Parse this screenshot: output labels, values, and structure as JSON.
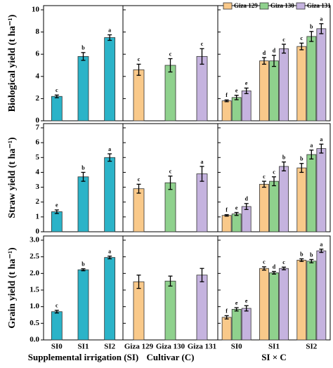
{
  "chart_data": [
    {
      "type": "bar",
      "ylabel": "Biological yield (t ha⁻¹)",
      "ylim": [
        0,
        10
      ],
      "yticks": [
        0,
        2,
        4,
        6,
        8,
        10
      ],
      "values": [
        2.2,
        5.8,
        7.5
      ],
      "errors": [
        0.12,
        0.35,
        0.25
      ],
      "letters": [
        "c",
        "b",
        "a"
      ],
      "color": "#2bb3c8"
    },
    {
      "type": "bar",
      "ylim": [
        0,
        10
      ],
      "values": [
        4.6,
        5.0,
        5.8
      ],
      "errors": [
        0.5,
        0.6,
        0.7
      ],
      "letters": [
        "c",
        "c",
        "c"
      ],
      "colors": [
        "#f9c98a",
        "#8fd18d",
        "#c5b3df"
      ]
    },
    {
      "type": "grouped_bar",
      "ylim": [
        0,
        10
      ],
      "legend": "upper right",
      "series": [
        {
          "name": "Giza 129",
          "color": "#f9c98a",
          "values": [
            1.8,
            5.4,
            6.7
          ],
          "errors": [
            0.08,
            0.3,
            0.3
          ],
          "letters": [
            "f",
            "d",
            "c"
          ]
        },
        {
          "name": "Giza 130",
          "color": "#8fd18d",
          "values": [
            2.1,
            5.4,
            7.6
          ],
          "errors": [
            0.2,
            0.5,
            0.45
          ],
          "letters": [
            "e",
            "d",
            "b"
          ]
        },
        {
          "name": "Giza 131",
          "color": "#c5b3df",
          "values": [
            2.7,
            6.5,
            8.3
          ],
          "errors": [
            0.25,
            0.4,
            0.45
          ],
          "letters": [
            "e",
            "c",
            "a"
          ]
        }
      ]
    },
    {
      "type": "bar",
      "ylabel": "Straw yield (t ha⁻¹)",
      "ylim": [
        0,
        7
      ],
      "yticks": [
        0,
        1,
        2,
        3,
        4,
        5,
        6,
        7
      ],
      "values": [
        1.35,
        3.7,
        5.0
      ],
      "errors": [
        0.12,
        0.3,
        0.25
      ],
      "letters": [
        "e",
        "b",
        "a"
      ],
      "color": "#2bb3c8"
    },
    {
      "type": "bar",
      "ylim": [
        0,
        7
      ],
      "values": [
        2.9,
        3.3,
        3.9
      ],
      "errors": [
        0.3,
        0.45,
        0.5
      ],
      "letters": [
        "c",
        "c",
        "a"
      ],
      "colors": [
        "#f9c98a",
        "#8fd18d",
        "#c5b3df"
      ]
    },
    {
      "type": "grouped_bar",
      "ylim": [
        0,
        7
      ],
      "series": [
        {
          "color": "#f9c98a",
          "values": [
            1.1,
            3.2,
            4.3
          ],
          "errors": [
            0.05,
            0.2,
            0.3
          ],
          "letters": [
            "f",
            "c",
            "b"
          ]
        },
        {
          "color": "#8fd18d",
          "values": [
            1.2,
            3.4,
            5.2
          ],
          "errors": [
            0.1,
            0.3,
            0.3
          ],
          "letters": [
            "e",
            "c",
            "a"
          ]
        },
        {
          "color": "#c5b3df",
          "values": [
            1.7,
            4.4,
            5.6
          ],
          "errors": [
            0.2,
            0.3,
            0.3
          ],
          "letters": [
            "d",
            "b",
            "a"
          ]
        }
      ]
    },
    {
      "type": "bar",
      "ylabel": "Grain yield (t ha⁻¹)",
      "xlabel": "Supplemental irrigation (SI)",
      "categories": [
        "SI0",
        "SI1",
        "SI2"
      ],
      "ylim": [
        0,
        3
      ],
      "yticks": [
        {
          "value": 0,
          "label": "0.0"
        },
        0.5,
        {
          "value": 1,
          "label": "1.0"
        },
        1.5,
        {
          "value": 2,
          "label": "2.0"
        },
        2.5,
        {
          "value": 3,
          "label": "3.0"
        }
      ],
      "values": [
        0.85,
        2.11,
        2.48
      ],
      "errors": [
        0.04,
        0.03,
        0.04
      ],
      "letters": [
        "c",
        "b",
        "a"
      ],
      "color": "#2bb3c8"
    },
    {
      "type": "bar",
      "xlabel": "Cultivar (C)",
      "categories": [
        "Giza 129",
        "Giza 130",
        "Giza 131"
      ],
      "ylim": [
        0,
        3
      ],
      "values": [
        1.75,
        1.77,
        1.95
      ],
      "errors": [
        0.2,
        0.15,
        0.2
      ],
      "colors": [
        "#f9c98a",
        "#8fd18d",
        "#c5b3df"
      ]
    },
    {
      "type": "grouped_bar",
      "xlabel": "SI × C",
      "categories": [
        "SI0",
        "SI1",
        "SI2"
      ],
      "ylim": [
        0,
        3
      ],
      "series": [
        {
          "color": "#f9c98a",
          "values": [
            0.68,
            2.15,
            2.4
          ],
          "errors": [
            0.05,
            0.05,
            0.04
          ],
          "letters": [
            "f",
            "c",
            "b"
          ]
        },
        {
          "color": "#8fd18d",
          "values": [
            0.92,
            2.02,
            2.37
          ],
          "errors": [
            0.05,
            0.04,
            0.05
          ],
          "letters": [
            "e",
            "d",
            "b"
          ]
        },
        {
          "color": "#c5b3df",
          "values": [
            0.95,
            2.15,
            2.68
          ],
          "errors": [
            0.08,
            0.04,
            0.05
          ],
          "letters": [
            "e",
            "c",
            "a"
          ]
        }
      ]
    }
  ]
}
